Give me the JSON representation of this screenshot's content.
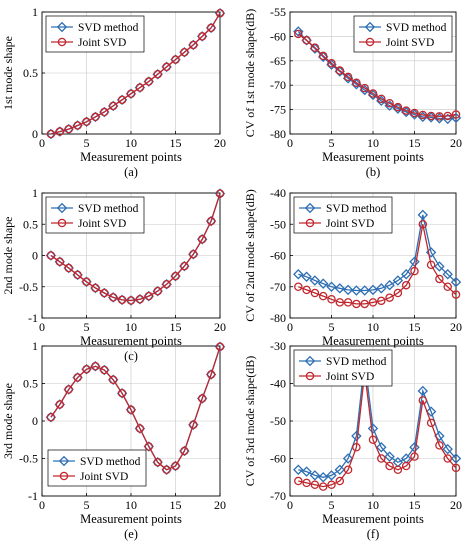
{
  "colors": {
    "svd": "#2E6FB4",
    "joint": "#C0272D",
    "axis": "#000000",
    "grid": "#c8c8c8"
  },
  "chart_data": [
    {
      "type": "line",
      "panel_label": "(a)",
      "xlabel": "Measurement points",
      "ylabel": "1st mode shape",
      "xlim": [
        0,
        20
      ],
      "ylim": [
        0,
        1
      ],
      "xticks": [
        0,
        5,
        10,
        15,
        20
      ],
      "yticks": [
        0,
        0.5,
        1
      ],
      "grid": true,
      "legend": "top-left",
      "x": [
        1,
        2,
        3,
        4,
        5,
        6,
        7,
        8,
        9,
        10,
        11,
        12,
        13,
        14,
        15,
        16,
        17,
        18,
        19,
        20
      ],
      "series": [
        {
          "name": "SVD method",
          "marker": "diamond",
          "values": [
            0.0,
            0.02,
            0.04,
            0.07,
            0.1,
            0.14,
            0.18,
            0.23,
            0.28,
            0.33,
            0.38,
            0.43,
            0.49,
            0.55,
            0.61,
            0.67,
            0.73,
            0.8,
            0.87,
            0.99
          ]
        },
        {
          "name": "Joint SVD",
          "marker": "circle",
          "values": [
            0.0,
            0.02,
            0.04,
            0.07,
            0.1,
            0.14,
            0.18,
            0.23,
            0.28,
            0.33,
            0.38,
            0.43,
            0.49,
            0.55,
            0.61,
            0.67,
            0.73,
            0.8,
            0.87,
            0.99
          ]
        }
      ]
    },
    {
      "type": "line",
      "panel_label": "(b)",
      "xlabel": "Measurement points",
      "ylabel": "CV of 1st mode shape(dB)",
      "xlim": [
        0,
        20
      ],
      "ylim": [
        -80,
        -55
      ],
      "xticks": [
        0,
        5,
        10,
        15,
        20
      ],
      "yticks": [
        -80,
        -75,
        -70,
        -65,
        -60,
        -55
      ],
      "grid": true,
      "legend": "top-right",
      "x": [
        1,
        2,
        3,
        4,
        5,
        6,
        7,
        8,
        9,
        10,
        11,
        12,
        13,
        14,
        15,
        16,
        17,
        18,
        19,
        20
      ],
      "series": [
        {
          "name": "SVD method",
          "marker": "diamond",
          "values": [
            -59.0,
            -60.8,
            -62.5,
            -64.2,
            -65.8,
            -67.2,
            -68.6,
            -69.8,
            -71.0,
            -72.0,
            -73.2,
            -74.2,
            -74.8,
            -75.5,
            -76.0,
            -76.5,
            -76.6,
            -76.8,
            -76.9,
            -76.7
          ]
        },
        {
          "name": "Joint SVD",
          "marker": "circle",
          "values": [
            -59.5,
            -60.8,
            -62.3,
            -64.0,
            -65.5,
            -67.0,
            -68.3,
            -69.5,
            -70.6,
            -71.7,
            -72.8,
            -73.7,
            -74.5,
            -75.2,
            -75.7,
            -76.1,
            -76.3,
            -76.4,
            -76.3,
            -76.0
          ]
        }
      ]
    },
    {
      "type": "line",
      "panel_label": "(c)",
      "xlabel": "Measurement points",
      "ylabel": "2nd mode shape",
      "xlim": [
        0,
        20
      ],
      "ylim": [
        -1,
        1
      ],
      "xticks": [
        0,
        5,
        10,
        15,
        20
      ],
      "yticks": [
        -1,
        -0.5,
        0,
        0.5,
        1
      ],
      "grid": true,
      "legend": "top-left",
      "x": [
        1,
        2,
        3,
        4,
        5,
        6,
        7,
        8,
        9,
        10,
        11,
        12,
        13,
        14,
        15,
        16,
        17,
        18,
        19,
        20
      ],
      "series": [
        {
          "name": "SVD method",
          "marker": "diamond",
          "values": [
            0.0,
            -0.1,
            -0.2,
            -0.31,
            -0.42,
            -0.52,
            -0.6,
            -0.67,
            -0.71,
            -0.72,
            -0.7,
            -0.65,
            -0.57,
            -0.46,
            -0.33,
            -0.17,
            0.02,
            0.26,
            0.55,
            0.99
          ]
        },
        {
          "name": "Joint SVD",
          "marker": "circle",
          "values": [
            0.0,
            -0.1,
            -0.2,
            -0.31,
            -0.42,
            -0.52,
            -0.6,
            -0.67,
            -0.71,
            -0.72,
            -0.7,
            -0.65,
            -0.57,
            -0.46,
            -0.33,
            -0.17,
            0.02,
            0.26,
            0.55,
            0.99
          ]
        }
      ]
    },
    {
      "type": "line",
      "panel_label": "(d)",
      "xlabel": "Measurement points",
      "ylabel": "CV of 2nd mode shape(dB)",
      "xlim": [
        0,
        20
      ],
      "ylim": [
        -80,
        -40
      ],
      "xticks": [
        0,
        5,
        10,
        15,
        20
      ],
      "yticks": [
        -80,
        -70,
        -60,
        -50,
        -40
      ],
      "grid": true,
      "legend": "top-left",
      "x": [
        1,
        2,
        3,
        4,
        5,
        6,
        7,
        8,
        9,
        10,
        11,
        12,
        13,
        14,
        15,
        16,
        17,
        18,
        19,
        20
      ],
      "series": [
        {
          "name": "SVD method",
          "marker": "diamond",
          "values": [
            -66.0,
            -66.8,
            -68.0,
            -69.0,
            -70.0,
            -70.5,
            -71.0,
            -71.2,
            -71.2,
            -71.0,
            -70.5,
            -69.5,
            -68.0,
            -66.0,
            -62.0,
            -47.0,
            -59.0,
            -63.5,
            -66.0,
            -68.5
          ]
        },
        {
          "name": "Joint SVD",
          "marker": "circle",
          "values": [
            -70.0,
            -71.0,
            -72.0,
            -73.0,
            -74.0,
            -75.0,
            -75.0,
            -75.5,
            -75.5,
            -75.0,
            -74.5,
            -73.5,
            -72.0,
            -69.5,
            -65.0,
            -50.0,
            -63.0,
            -67.5,
            -70.0,
            -72.5
          ]
        }
      ]
    },
    {
      "type": "line",
      "panel_label": "(e)",
      "xlabel": "Measurement points",
      "ylabel": "3rd mode shape",
      "xlim": [
        0,
        20
      ],
      "ylim": [
        -1,
        1
      ],
      "xticks": [
        0,
        5,
        10,
        15,
        20
      ],
      "yticks": [
        -1,
        -0.5,
        0,
        0.5,
        1
      ],
      "grid": true,
      "legend": "bottom-left",
      "x": [
        1,
        2,
        3,
        4,
        5,
        6,
        7,
        8,
        9,
        10,
        11,
        12,
        13,
        14,
        15,
        16,
        17,
        18,
        19,
        20
      ],
      "series": [
        {
          "name": "SVD method",
          "marker": "diamond",
          "values": [
            0.05,
            0.22,
            0.42,
            0.58,
            0.69,
            0.73,
            0.68,
            0.55,
            0.37,
            0.15,
            -0.1,
            -0.34,
            -0.55,
            -0.65,
            -0.6,
            -0.4,
            -0.05,
            0.3,
            0.62,
            0.99
          ]
        },
        {
          "name": "Joint SVD",
          "marker": "circle",
          "values": [
            0.05,
            0.22,
            0.42,
            0.58,
            0.69,
            0.73,
            0.68,
            0.55,
            0.37,
            0.15,
            -0.1,
            -0.34,
            -0.55,
            -0.65,
            -0.6,
            -0.4,
            -0.05,
            0.3,
            0.62,
            0.99
          ]
        }
      ]
    },
    {
      "type": "line",
      "panel_label": "(f)",
      "xlabel": "Measurement points",
      "ylabel": "CV of 3rd mode shape(dB)",
      "xlim": [
        0,
        20
      ],
      "ylim": [
        -70,
        -30
      ],
      "xticks": [
        0,
        5,
        10,
        15,
        20
      ],
      "yticks": [
        -70,
        -60,
        -50,
        -40,
        -30
      ],
      "grid": true,
      "legend": "top-left",
      "x": [
        1,
        2,
        3,
        4,
        5,
        6,
        7,
        8,
        9,
        10,
        11,
        12,
        13,
        14,
        15,
        16,
        17,
        18,
        19,
        20
      ],
      "series": [
        {
          "name": "SVD method",
          "marker": "diamond",
          "values": [
            -63.0,
            -63.5,
            -64.5,
            -65.0,
            -64.5,
            -63.0,
            -60.0,
            -54.0,
            -34.0,
            -52.0,
            -57.0,
            -59.5,
            -61.0,
            -60.0,
            -57.0,
            -42.0,
            -47.5,
            -54.0,
            -57.5,
            -60.0
          ]
        },
        {
          "name": "Joint SVD",
          "marker": "circle",
          "values": [
            -66.0,
            -66.5,
            -67.0,
            -67.5,
            -67.0,
            -66.0,
            -63.0,
            -57.0,
            -37.0,
            -55.0,
            -60.0,
            -62.0,
            -63.0,
            -62.0,
            -59.5,
            -44.5,
            -50.5,
            -56.5,
            -60.0,
            -62.5
          ]
        }
      ]
    }
  ]
}
